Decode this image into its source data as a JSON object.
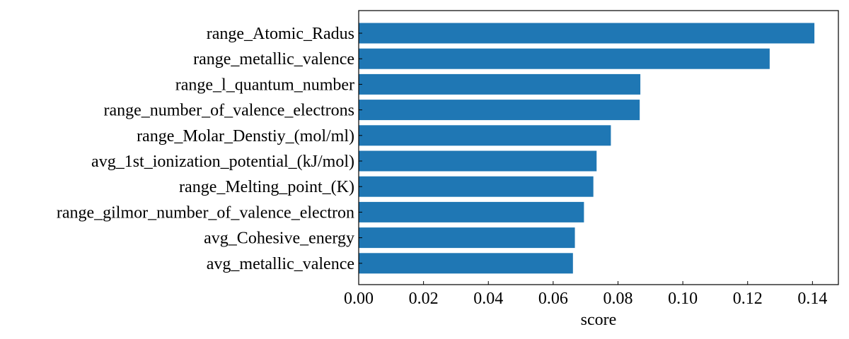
{
  "chart_data": {
    "type": "bar",
    "orientation": "horizontal",
    "title": "",
    "xlabel": "score",
    "ylabel": "",
    "xlim": [
      0,
      0.148
    ],
    "x_ticks": [
      "0.00",
      "0.02",
      "0.04",
      "0.06",
      "0.08",
      "0.10",
      "0.12",
      "0.14"
    ],
    "categories": [
      "range_Atomic_Radus",
      "range_metallic_valence",
      "range_l_quantum_number",
      "range_number_of_valence_electrons",
      "range_Molar_Denstiy_(mol/ml)",
      "avg_1st_ionization_potential_(kJ/mol)",
      "range_Melting_point_(K)",
      "range_gilmor_number_of_valence_electron",
      "avg_Cohesive_energy",
      "avg_metallic_valence"
    ],
    "values": [
      0.1406,
      0.1268,
      0.0869,
      0.0867,
      0.0778,
      0.0734,
      0.0724,
      0.0695,
      0.0667,
      0.0661
    ],
    "bar_color": "#1f77b4",
    "grid": false,
    "legend": "none"
  }
}
